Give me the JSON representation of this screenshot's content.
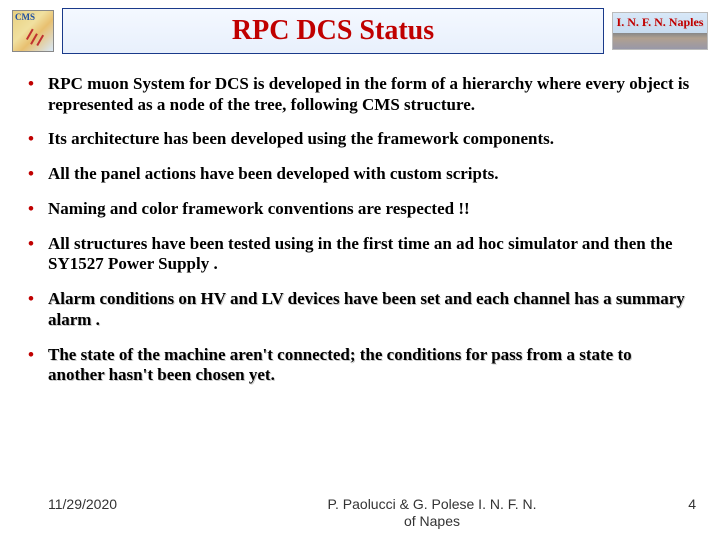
{
  "header": {
    "cms_label": "CMS",
    "title": "RPC DCS Status",
    "infn_label": "I. N. F. N. Naples",
    "title_color": "#c00000",
    "title_border": "#1a3a8a",
    "title_bg_top": "#f4f8ff",
    "title_bg_bottom": "#e8f0fc"
  },
  "bullets": [
    {
      "text": "RPC muon System for DCS is developed in the form of  a hierarchy where every object is represented as a node of the tree, following CMS structure.",
      "shadow": false
    },
    {
      "text": "Its architecture  has been developed using the framework components.",
      "shadow": false
    },
    {
      "text": "All the panel actions have been developed with custom scripts.",
      "shadow": false
    },
    {
      "text": "Naming and color framework conventions are respected !!",
      "shadow": false
    },
    {
      "text": "All structures have been tested using in the first time an  ad hoc simulator and then the SY1527 Power Supply .",
      "shadow": false
    },
    {
      "text": "Alarm conditions on HV and LV devices have been set and each channel has a summary alarm .",
      "shadow": true
    },
    {
      "text": "The state of the machine aren't connected; the conditions for pass from a state to another hasn't been chosen yet.",
      "shadow": true
    }
  ],
  "bullet_marker": "•",
  "bullet_marker_color": "#c00000",
  "footer": {
    "date": "11/29/2020",
    "center_line1": "P. Paolucci & G. Polese     I. N. F. N.",
    "center_line2": "of Napes",
    "page": "4"
  },
  "colors": {
    "background": "#ffffff",
    "text": "#000000",
    "accent": "#c00000"
  }
}
